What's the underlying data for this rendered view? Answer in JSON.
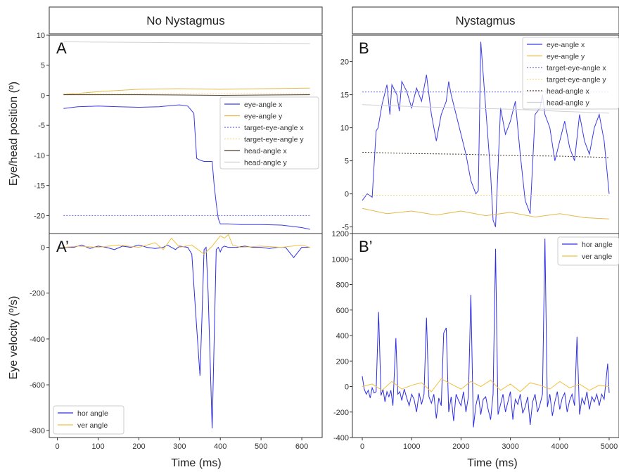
{
  "column_headers": [
    "No Nystagmus",
    "Nystagmus"
  ],
  "row_labels": {
    "top": "Eye/head position (º)",
    "bottom": "Eye velocity (º/s)"
  },
  "x_labels": {
    "left": "Time (ms)",
    "right": "Time (ms)"
  },
  "panel_labels": {
    "A": "A",
    "B": "B",
    "A2": "A’",
    "B2": "B’"
  },
  "colors": {
    "eye_x": "#3a3ae8",
    "eye_y": "#e6b84a",
    "target_x": "#6b6bf0",
    "target_y": "#f3d98a",
    "head_x": "#4a3b2a",
    "head_y": "#cfcfd6",
    "hor": "#2e2ee6",
    "ver": "#f0c040"
  },
  "chart_data": [
    {
      "id": "A",
      "type": "line",
      "xlim": [
        -20,
        650
      ],
      "ylim": [
        -23,
        10
      ],
      "yticks": [
        10,
        5,
        0,
        -5,
        -10,
        -15,
        -20
      ],
      "legend_position": "center-right",
      "series": [
        {
          "name": "eye-angle x",
          "key": "eye_x",
          "style": "solid",
          "x": [
            15,
            50,
            100,
            150,
            200,
            250,
            280,
            300,
            320,
            335,
            342,
            350,
            360,
            370,
            380,
            385,
            390,
            395,
            400,
            420,
            450,
            500,
            550,
            600,
            620
          ],
          "y": [
            -2.2,
            -1.9,
            -1.8,
            -1.9,
            -2.0,
            -1.9,
            -1.7,
            -1.6,
            -1.8,
            -3.0,
            -10.5,
            -10.8,
            -11.0,
            -11.0,
            -11.0,
            -15.0,
            -18.0,
            -20.5,
            -21.4,
            -21.4,
            -21.5,
            -21.5,
            -21.6,
            -22.0,
            -22.3
          ]
        },
        {
          "name": "eye-angle y",
          "key": "eye_y",
          "style": "solid",
          "x": [
            15,
            100,
            200,
            300,
            400,
            500,
            620
          ],
          "y": [
            0.1,
            0.6,
            1.0,
            1.1,
            1.0,
            1.1,
            1.2
          ]
        },
        {
          "name": "target-eye-angle x",
          "key": "target_x",
          "style": "dotted",
          "x": [
            15,
            620
          ],
          "y": [
            -20.0,
            -20.0
          ]
        },
        {
          "name": "target-eye-angle y",
          "key": "target_y",
          "style": "dotted",
          "x": [
            15,
            620
          ],
          "y": [
            0.3,
            0.3
          ]
        },
        {
          "name": "head-angle x",
          "key": "head_x",
          "style": "solid",
          "x": [
            15,
            200,
            400,
            620
          ],
          "y": [
            0.1,
            0.1,
            0.0,
            0.1
          ]
        },
        {
          "name": "head-angle y",
          "key": "head_y",
          "style": "solid",
          "x": [
            15,
            200,
            400,
            620
          ],
          "y": [
            8.9,
            8.8,
            8.7,
            8.6
          ]
        }
      ]
    },
    {
      "id": "B",
      "type": "line",
      "xlim": [
        -200,
        5200
      ],
      "ylim": [
        -6,
        24
      ],
      "yticks": [
        20,
        15,
        10,
        5,
        0,
        -5
      ],
      "legend_position": "top-right",
      "series": [
        {
          "name": "eye-angle x",
          "key": "eye_x",
          "style": "solid",
          "x": [
            0,
            100,
            200,
            280,
            320,
            400,
            500,
            560,
            600,
            700,
            750,
            800,
            900,
            1000,
            1100,
            1200,
            1300,
            1400,
            1500,
            1600,
            1700,
            1750,
            1800,
            1900,
            2000,
            2100,
            2200,
            2300,
            2350,
            2400,
            2500,
            2600,
            2650,
            2700,
            2800,
            2900,
            3000,
            3100,
            3200,
            3300,
            3400,
            3500,
            3600,
            3650,
            3700,
            3800,
            3900,
            4000,
            4100,
            4200,
            4300,
            4400,
            4500,
            4600,
            4700,
            4800,
            4900,
            5000
          ],
          "y": [
            -1,
            0,
            -0.5,
            9.5,
            10,
            13.5,
            16.5,
            12,
            16.5,
            15,
            12.5,
            17,
            15.5,
            13,
            16,
            14,
            18,
            12,
            8,
            12,
            14,
            17,
            15,
            12,
            9,
            6,
            2,
            0,
            0.5,
            23,
            13,
            3,
            -4,
            -5,
            13,
            9,
            11,
            14,
            6,
            -1,
            -3,
            12,
            13,
            15,
            12,
            10,
            5,
            8,
            11,
            7,
            5,
            12,
            8,
            6,
            10,
            12,
            8,
            0
          ]
        },
        {
          "name": "eye-angle y",
          "key": "eye_y",
          "style": "solid",
          "x": [
            0,
            500,
            1000,
            1500,
            2000,
            2500,
            3000,
            3500,
            4000,
            4500,
            5000
          ],
          "y": [
            -2.2,
            -3.0,
            -2.6,
            -3.2,
            -2.6,
            -3.3,
            -2.8,
            -3.5,
            -3.0,
            -3.6,
            -3.8
          ]
        },
        {
          "name": "target-eye-angle x",
          "key": "target_x",
          "style": "dotted",
          "x": [
            0,
            5000
          ],
          "y": [
            15.4,
            15.4
          ]
        },
        {
          "name": "target-eye-angle y",
          "key": "target_y",
          "style": "dotted",
          "x": [
            0,
            5000
          ],
          "y": [
            -0.2,
            -0.2
          ]
        },
        {
          "name": "head-angle x",
          "key": "head_x",
          "style": "dotted",
          "x": [
            0,
            1000,
            2000,
            3000,
            4000,
            5000
          ],
          "y": [
            6.3,
            6.1,
            6.0,
            5.8,
            5.7,
            5.5
          ]
        },
        {
          "name": "head-angle y",
          "key": "head_y",
          "style": "solid",
          "x": [
            0,
            1000,
            2000,
            3000,
            4000,
            5000
          ],
          "y": [
            13.5,
            13.2,
            13.0,
            12.8,
            12.5,
            12.2
          ]
        }
      ]
    },
    {
      "id": "A2",
      "type": "line",
      "xlim": [
        -20,
        650
      ],
      "ylim": [
        -830,
        60
      ],
      "xticks": [
        0,
        100,
        200,
        300,
        400,
        500,
        600
      ],
      "yticks": [
        0,
        -200,
        -400,
        -600,
        -800
      ],
      "legend_position": "bottom-left",
      "series": [
        {
          "name": "hor angle",
          "key": "hor",
          "style": "solid",
          "x": [
            15,
            40,
            60,
            80,
            100,
            120,
            140,
            160,
            180,
            200,
            220,
            240,
            260,
            270,
            280,
            290,
            300,
            320,
            330,
            340,
            350,
            355,
            360,
            365,
            370,
            380,
            385,
            390,
            395,
            400,
            405,
            410,
            420,
            440,
            460,
            480,
            500,
            520,
            540,
            560,
            580,
            600,
            620
          ],
          "y": [
            0,
            0,
            10,
            -5,
            5,
            0,
            -10,
            5,
            0,
            10,
            0,
            -5,
            0,
            10,
            0,
            -10,
            5,
            0,
            -30,
            -300,
            -560,
            -300,
            -10,
            0,
            -200,
            -790,
            -400,
            -10,
            0,
            -20,
            0,
            5,
            0,
            0,
            5,
            0,
            0,
            -5,
            0,
            0,
            -45,
            0,
            0
          ]
        },
        {
          "name": "ver angle",
          "key": "ver",
          "style": "solid",
          "x": [
            15,
            50,
            100,
            150,
            200,
            240,
            260,
            280,
            300,
            330,
            360,
            380,
            400,
            410,
            420,
            430,
            450,
            500,
            550,
            600,
            620
          ],
          "y": [
            0,
            5,
            0,
            10,
            0,
            20,
            -10,
            40,
            0,
            10,
            -30,
            5,
            50,
            40,
            55,
            10,
            0,
            5,
            0,
            10,
            0
          ]
        }
      ]
    },
    {
      "id": "B2",
      "type": "line",
      "xlim": [
        -200,
        5200
      ],
      "ylim": [
        -400,
        1200
      ],
      "xticks": [
        0,
        1000,
        2000,
        3000,
        4000,
        5000
      ],
      "yticks": [
        1200,
        1000,
        800,
        600,
        400,
        200,
        0,
        -200,
        -400
      ],
      "legend_position": "top-right",
      "spikes": [
        [
          330,
          585
        ],
        [
          680,
          380
        ],
        [
          1300,
          540
        ],
        [
          1650,
          420
        ],
        [
          1700,
          460
        ],
        [
          2200,
          720
        ],
        [
          2700,
          1080
        ],
        [
          3650,
          1160
        ],
        [
          4350,
          390
        ],
        [
          4970,
          180
        ]
      ],
      "series": [
        {
          "name": "hor angle",
          "key": "hor",
          "style": "solid",
          "x": [
            0,
            40,
            80,
            120,
            160,
            200,
            240,
            280,
            330,
            380,
            420,
            460,
            500,
            540,
            580,
            620,
            680,
            720,
            760,
            800,
            850,
            900,
            950,
            1000,
            1050,
            1100,
            1150,
            1200,
            1250,
            1300,
            1350,
            1400,
            1450,
            1500,
            1550,
            1600,
            1650,
            1700,
            1750,
            1800,
            1850,
            1900,
            1950,
            2000,
            2050,
            2100,
            2150,
            2200,
            2250,
            2300,
            2350,
            2400,
            2450,
            2500,
            2550,
            2600,
            2650,
            2700,
            2750,
            2800,
            2850,
            2900,
            2950,
            3000,
            3050,
            3100,
            3150,
            3200,
            3250,
            3300,
            3350,
            3400,
            3450,
            3500,
            3550,
            3600,
            3650,
            3700,
            3750,
            3800,
            3850,
            3900,
            3950,
            4000,
            4050,
            4100,
            4150,
            4200,
            4250,
            4300,
            4350,
            4400,
            4450,
            4500,
            4550,
            4600,
            4650,
            4700,
            4750,
            4800,
            4850,
            4900,
            4970,
            5000
          ],
          "y": [
            80,
            -20,
            -60,
            -30,
            -90,
            -10,
            -50,
            -40,
            585,
            -70,
            -20,
            -120,
            -40,
            -80,
            -30,
            -150,
            380,
            -60,
            -40,
            -110,
            -20,
            -90,
            -150,
            -60,
            -100,
            -200,
            -50,
            -140,
            -60,
            540,
            -80,
            -130,
            -60,
            -250,
            -90,
            -150,
            420,
            460,
            -200,
            -80,
            -270,
            -60,
            -110,
            -150,
            -40,
            -200,
            -80,
            720,
            -320,
            -150,
            -60,
            -220,
            -100,
            -80,
            -180,
            -260,
            -60,
            1080,
            -220,
            -140,
            -60,
            -200,
            -120,
            -40,
            -260,
            -100,
            -140,
            -60,
            -210,
            -160,
            -80,
            -300,
            -120,
            -60,
            -200,
            -140,
            -60,
            1160,
            -160,
            -60,
            -230,
            -120,
            -40,
            -180,
            -90,
            -50,
            -200,
            -110,
            -60,
            -150,
            390,
            -220,
            -90,
            -140,
            -40,
            -180,
            -80,
            -120,
            -60,
            -150,
            -60,
            -100,
            180,
            -50
          ]
        },
        {
          "name": "ver angle",
          "key": "ver",
          "style": "solid",
          "x": [
            0,
            200,
            400,
            600,
            800,
            1000,
            1200,
            1400,
            1600,
            1800,
            2000,
            2200,
            2400,
            2600,
            2800,
            3000,
            3200,
            3400,
            3600,
            3800,
            4000,
            4200,
            4400,
            4600,
            4800,
            5000
          ],
          "y": [
            0,
            20,
            -30,
            40,
            -20,
            10,
            30,
            -40,
            60,
            20,
            -20,
            40,
            0,
            50,
            -30,
            20,
            -40,
            30,
            10,
            -20,
            40,
            -10,
            20,
            -30,
            10,
            0
          ]
        }
      ]
    }
  ]
}
